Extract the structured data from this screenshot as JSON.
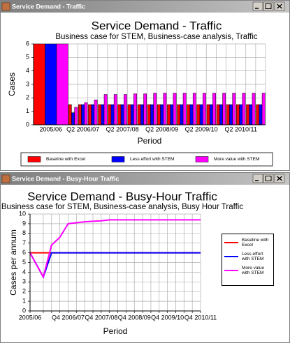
{
  "windows": [
    {
      "title": "Service Demand - Traffic"
    },
    {
      "title": "Service Demand - Busy-Hour Traffic"
    }
  ],
  "chart_data": [
    {
      "type": "bar",
      "title": "Service Demand - Traffic",
      "subtitle": "Business case for STEM, Business-case analysis, Traffic",
      "x_label": "Period",
      "y_label": "Cases",
      "categories": [
        "2005/06",
        null,
        "Q2 2006/07",
        null,
        null,
        null,
        "Q2 2007/08",
        null,
        null,
        null,
        "Q2 2008/09",
        null,
        null,
        null,
        "Q2 2009/10",
        null,
        null,
        null,
        "Q2 2010/11",
        null,
        null
      ],
      "series": [
        {
          "name": "Baseline with Excel",
          "color": "#ff0000",
          "values": [
            6,
            1.5,
            1.5,
            1.5,
            1.5,
            1.5,
            1.5,
            1.5,
            1.5,
            1.5,
            1.5,
            1.5,
            1.5,
            1.5,
            1.5,
            1.5,
            1.5,
            1.5,
            1.5,
            1.5,
            1.5
          ]
        },
        {
          "name": "Less effort with STEM",
          "color": "#0000ff",
          "values": [
            6,
            0.9,
            1.5,
            1.5,
            1.5,
            1.5,
            1.5,
            1.5,
            1.5,
            1.5,
            1.5,
            1.5,
            1.5,
            1.5,
            1.5,
            1.5,
            1.5,
            1.5,
            1.5,
            1.5,
            1.5
          ]
        },
        {
          "name": "More value with STEM",
          "color": "#ff00ff",
          "values": [
            6,
            1.3,
            1.65,
            1.85,
            2.25,
            2.25,
            2.25,
            2.3,
            2.3,
            2.35,
            2.35,
            2.35,
            2.35,
            2.35,
            2.35,
            2.35,
            2.35,
            2.35,
            2.35,
            2.35,
            2.35
          ]
        }
      ],
      "ylim": [
        0,
        6
      ],
      "yticks": [
        0,
        1,
        2,
        3,
        4,
        5,
        6
      ],
      "grid": true,
      "legend": "bottom"
    },
    {
      "type": "line",
      "title": "Service Demand - Busy-Hour Traffic",
      "subtitle": "Business case for STEM, Business-case analysis, Busy Hour Traffic",
      "x_label": "Period",
      "y_label": "Cases per annum",
      "categories": [
        "2005/06",
        null,
        null,
        null,
        "Q4 2006/07",
        null,
        null,
        null,
        "Q4 2007/08",
        null,
        null,
        null,
        "Q4 2008/09",
        null,
        null,
        null,
        "Q4 2009/10",
        null,
        null,
        null,
        "Q4 2010/11"
      ],
      "series": [
        {
          "name": "Baseline with Excel",
          "color": "#ff0000",
          "values": [
            6,
            6,
            6,
            6,
            6,
            6,
            6,
            6,
            6,
            6,
            6,
            6,
            6,
            6,
            6,
            6,
            6,
            6,
            6,
            6,
            6
          ]
        },
        {
          "name": "Less effort with STEM",
          "color": "#0000ff",
          "values": [
            6,
            3.5,
            6,
            6,
            6,
            6,
            6,
            6,
            6,
            6,
            6,
            6,
            6,
            6,
            6,
            6,
            6,
            6,
            6,
            6,
            6
          ]
        },
        {
          "name": "More value with STEM",
          "color": "#ff00ff",
          "values": [
            6,
            3.5,
            6.8,
            7.6,
            9.0,
            9.1,
            9.2,
            9.25,
            9.3,
            9.4,
            9.4,
            9.4,
            9.4,
            9.4,
            9.4,
            9.4,
            9.4,
            9.4,
            9.4,
            9.4,
            9.4
          ]
        }
      ],
      "ylim": [
        0,
        10
      ],
      "yticks": [
        0,
        1,
        2,
        3,
        4,
        5,
        6,
        7,
        8,
        9,
        10
      ],
      "grid": true,
      "legend": "right"
    }
  ]
}
